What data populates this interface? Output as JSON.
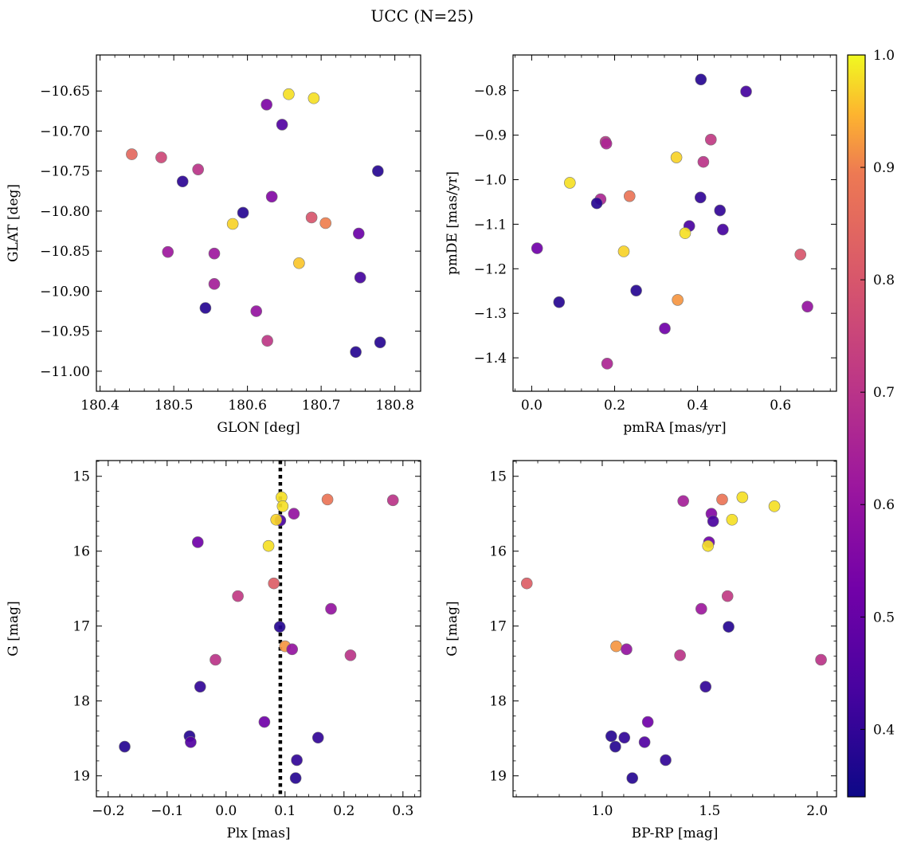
{
  "figure": {
    "title": "UCC (N=25)"
  },
  "colorbar": {
    "range": [
      0.34,
      1.0
    ],
    "ticks": [
      0.4,
      0.5,
      0.6,
      0.7,
      0.8,
      0.9,
      1.0
    ],
    "tick_labels": [
      "0.4",
      "0.5",
      "0.6",
      "0.7",
      "0.8",
      "0.9",
      "1.0"
    ],
    "colormap": "plasma"
  },
  "chart_data": [
    {
      "type": "scatter",
      "id": "glon_glat",
      "xlabel": "GLON [deg]",
      "ylabel": "GLAT [deg]",
      "xlim": [
        180.395,
        180.835
      ],
      "ylim": [
        -11.025,
        -10.605
      ],
      "y_inverted": false,
      "xticks": [
        180.4,
        180.5,
        180.6,
        180.7,
        180.8
      ],
      "xtick_labels": [
        "180.4",
        "180.5",
        "180.6",
        "180.7",
        "180.8"
      ],
      "yticks": [
        -10.65,
        -10.7,
        -10.75,
        -10.8,
        -10.85,
        -10.9,
        -10.95,
        -11.0
      ],
      "ytick_labels": [
        "−10.65",
        "−10.70",
        "−10.75",
        "−10.80",
        "−10.85",
        "−10.90",
        "−10.95",
        "−11.00"
      ],
      "points": [
        {
          "x": 180.443,
          "y": -10.729,
          "c": 0.85
        },
        {
          "x": 180.483,
          "y": -10.733,
          "c": 0.76
        },
        {
          "x": 180.533,
          "y": -10.748,
          "c": 0.7
        },
        {
          "x": 180.512,
          "y": -10.763,
          "c": 0.39
        },
        {
          "x": 180.656,
          "y": -10.654,
          "c": 0.98
        },
        {
          "x": 180.69,
          "y": -10.659,
          "c": 0.98
        },
        {
          "x": 180.626,
          "y": -10.667,
          "c": 0.55
        },
        {
          "x": 180.647,
          "y": -10.692,
          "c": 0.46
        },
        {
          "x": 180.777,
          "y": -10.75,
          "c": 0.38
        },
        {
          "x": 180.633,
          "y": -10.782,
          "c": 0.56
        },
        {
          "x": 180.594,
          "y": -10.802,
          "c": 0.38
        },
        {
          "x": 180.58,
          "y": -10.816,
          "c": 0.97
        },
        {
          "x": 180.687,
          "y": -10.808,
          "c": 0.8
        },
        {
          "x": 180.706,
          "y": -10.815,
          "c": 0.9
        },
        {
          "x": 180.751,
          "y": -10.828,
          "c": 0.51
        },
        {
          "x": 180.492,
          "y": -10.851,
          "c": 0.62
        },
        {
          "x": 180.555,
          "y": -10.853,
          "c": 0.62
        },
        {
          "x": 180.67,
          "y": -10.865,
          "c": 0.96
        },
        {
          "x": 180.753,
          "y": -10.883,
          "c": 0.43
        },
        {
          "x": 180.555,
          "y": -10.891,
          "c": 0.64
        },
        {
          "x": 180.543,
          "y": -10.921,
          "c": 0.38
        },
        {
          "x": 180.612,
          "y": -10.925,
          "c": 0.6
        },
        {
          "x": 180.627,
          "y": -10.962,
          "c": 0.71
        },
        {
          "x": 180.747,
          "y": -10.976,
          "c": 0.38
        },
        {
          "x": 180.78,
          "y": -10.964,
          "c": 0.38
        }
      ]
    },
    {
      "type": "scatter",
      "id": "pmra_pmde",
      "xlabel": "pmRA [mas/yr]",
      "ylabel": "pmDE [mas/yr]",
      "xlim": [
        -0.045,
        0.735
      ],
      "ylim": [
        -1.475,
        -0.72
      ],
      "y_inverted": false,
      "xticks": [
        0.0,
        0.2,
        0.4,
        0.6
      ],
      "xtick_labels": [
        "0.0",
        "0.2",
        "0.4",
        "0.6"
      ],
      "yticks": [
        -0.8,
        -0.9,
        -1.0,
        -1.1,
        -1.2,
        -1.3,
        -1.4
      ],
      "ytick_labels": [
        "−0.8",
        "−0.9",
        "−1.0",
        "−1.1",
        "−1.2",
        "−1.3",
        "−1.4"
      ],
      "points": [
        {
          "x": 0.408,
          "y": -0.775,
          "c": 0.38
        },
        {
          "x": 0.517,
          "y": -0.802,
          "c": 0.43
        },
        {
          "x": 0.178,
          "y": -0.915,
          "c": 0.7
        },
        {
          "x": 0.18,
          "y": -0.919,
          "c": 0.66
        },
        {
          "x": 0.432,
          "y": -0.91,
          "c": 0.72
        },
        {
          "x": 0.349,
          "y": -0.95,
          "c": 0.97
        },
        {
          "x": 0.414,
          "y": -0.96,
          "c": 0.7
        },
        {
          "x": 0.092,
          "y": -1.007,
          "c": 0.98
        },
        {
          "x": 0.166,
          "y": -1.044,
          "c": 0.66
        },
        {
          "x": 0.157,
          "y": -1.053,
          "c": 0.38
        },
        {
          "x": 0.236,
          "y": -1.037,
          "c": 0.88
        },
        {
          "x": 0.407,
          "y": -1.04,
          "c": 0.4
        },
        {
          "x": 0.454,
          "y": -1.069,
          "c": 0.4
        },
        {
          "x": 0.38,
          "y": -1.104,
          "c": 0.44
        },
        {
          "x": 0.461,
          "y": -1.112,
          "c": 0.43
        },
        {
          "x": 0.37,
          "y": -1.12,
          "c": 0.98
        },
        {
          "x": 0.648,
          "y": -1.168,
          "c": 0.8
        },
        {
          "x": 0.013,
          "y": -1.154,
          "c": 0.52
        },
        {
          "x": 0.222,
          "y": -1.161,
          "c": 0.97
        },
        {
          "x": 0.252,
          "y": -1.249,
          "c": 0.38
        },
        {
          "x": 0.066,
          "y": -1.275,
          "c": 0.38
        },
        {
          "x": 0.352,
          "y": -1.27,
          "c": 0.92
        },
        {
          "x": 0.665,
          "y": -1.285,
          "c": 0.6
        },
        {
          "x": 0.321,
          "y": -1.334,
          "c": 0.52
        },
        {
          "x": 0.182,
          "y": -1.413,
          "c": 0.66
        }
      ]
    },
    {
      "type": "scatter",
      "id": "plx_g",
      "xlabel": "Plx [mas]",
      "ylabel": "G [mag]",
      "xlim": [
        -0.22,
        0.33
      ],
      "ylim": [
        19.28,
        14.79
      ],
      "y_inverted": true,
      "vline": 0.092,
      "xticks": [
        -0.2,
        -0.1,
        0.0,
        0.1,
        0.2,
        0.3
      ],
      "xtick_labels": [
        "−0.2",
        "−0.1",
        "0.0",
        "0.1",
        "0.2",
        "0.3"
      ],
      "yticks": [
        15,
        16,
        17,
        18,
        19
      ],
      "ytick_labels": [
        "15",
        "16",
        "17",
        "18",
        "19"
      ],
      "points": [
        {
          "x": 0.094,
          "y": 15.28,
          "c": 0.98
        },
        {
          "x": 0.172,
          "y": 15.31,
          "c": 0.88
        },
        {
          "x": 0.283,
          "y": 15.32,
          "c": 0.7
        },
        {
          "x": 0.096,
          "y": 15.4,
          "c": 0.98
        },
        {
          "x": 0.115,
          "y": 15.5,
          "c": 0.6
        },
        {
          "x": 0.092,
          "y": 15.59,
          "c": 0.44
        },
        {
          "x": 0.085,
          "y": 15.58,
          "c": 0.97
        },
        {
          "x": -0.048,
          "y": 15.88,
          "c": 0.52
        },
        {
          "x": 0.072,
          "y": 15.93,
          "c": 0.98
        },
        {
          "x": 0.02,
          "y": 16.6,
          "c": 0.72
        },
        {
          "x": 0.081,
          "y": 16.43,
          "c": 0.82
        },
        {
          "x": 0.178,
          "y": 16.77,
          "c": 0.6
        },
        {
          "x": 0.091,
          "y": 17.01,
          "c": 0.38
        },
        {
          "x": 0.1,
          "y": 17.27,
          "c": 0.92
        },
        {
          "x": 0.112,
          "y": 17.31,
          "c": 0.6
        },
        {
          "x": -0.018,
          "y": 17.45,
          "c": 0.7
        },
        {
          "x": 0.211,
          "y": 17.39,
          "c": 0.7
        },
        {
          "x": -0.044,
          "y": 17.81,
          "c": 0.4
        },
        {
          "x": 0.065,
          "y": 18.28,
          "c": 0.52
        },
        {
          "x": -0.062,
          "y": 18.47,
          "c": 0.38
        },
        {
          "x": -0.06,
          "y": 18.55,
          "c": 0.46
        },
        {
          "x": -0.172,
          "y": 18.61,
          "c": 0.38
        },
        {
          "x": 0.156,
          "y": 18.49,
          "c": 0.4
        },
        {
          "x": 0.12,
          "y": 18.79,
          "c": 0.4
        },
        {
          "x": 0.118,
          "y": 19.03,
          "c": 0.38
        }
      ]
    },
    {
      "type": "scatter",
      "id": "bprp_g",
      "xlabel": "BP-RP [mag]",
      "ylabel": "G [mag]",
      "xlim": [
        0.585,
        2.09
      ],
      "ylim": [
        19.28,
        14.79
      ],
      "y_inverted": true,
      "xticks": [
        1.0,
        1.5,
        2.0
      ],
      "xtick_labels": [
        "1.0",
        "1.5",
        "2.0"
      ],
      "yticks": [
        15,
        16,
        17,
        18,
        19
      ],
      "ytick_labels": [
        "15",
        "16",
        "17",
        "18",
        "19"
      ],
      "points": [
        {
          "x": 1.652,
          "y": 15.28,
          "c": 0.98
        },
        {
          "x": 1.558,
          "y": 15.31,
          "c": 0.88
        },
        {
          "x": 1.377,
          "y": 15.33,
          "c": 0.64
        },
        {
          "x": 1.801,
          "y": 15.4,
          "c": 0.98
        },
        {
          "x": 1.508,
          "y": 15.5,
          "c": 0.56
        },
        {
          "x": 1.516,
          "y": 15.6,
          "c": 0.44
        },
        {
          "x": 1.604,
          "y": 15.58,
          "c": 0.98
        },
        {
          "x": 1.497,
          "y": 15.88,
          "c": 0.52
        },
        {
          "x": 1.492,
          "y": 15.93,
          "c": 0.98
        },
        {
          "x": 0.649,
          "y": 16.43,
          "c": 0.82
        },
        {
          "x": 1.583,
          "y": 16.6,
          "c": 0.72
        },
        {
          "x": 1.461,
          "y": 16.77,
          "c": 0.62
        },
        {
          "x": 1.588,
          "y": 17.01,
          "c": 0.38
        },
        {
          "x": 1.065,
          "y": 17.27,
          "c": 0.92
        },
        {
          "x": 1.113,
          "y": 17.31,
          "c": 0.6
        },
        {
          "x": 1.362,
          "y": 17.39,
          "c": 0.7
        },
        {
          "x": 2.018,
          "y": 17.45,
          "c": 0.7
        },
        {
          "x": 1.481,
          "y": 17.81,
          "c": 0.4
        },
        {
          "x": 1.212,
          "y": 18.28,
          "c": 0.52
        },
        {
          "x": 1.042,
          "y": 18.47,
          "c": 0.38
        },
        {
          "x": 1.103,
          "y": 18.49,
          "c": 0.4
        },
        {
          "x": 1.197,
          "y": 18.55,
          "c": 0.46
        },
        {
          "x": 1.061,
          "y": 18.61,
          "c": 0.38
        },
        {
          "x": 1.295,
          "y": 18.79,
          "c": 0.4
        },
        {
          "x": 1.14,
          "y": 19.03,
          "c": 0.38
        }
      ]
    }
  ]
}
